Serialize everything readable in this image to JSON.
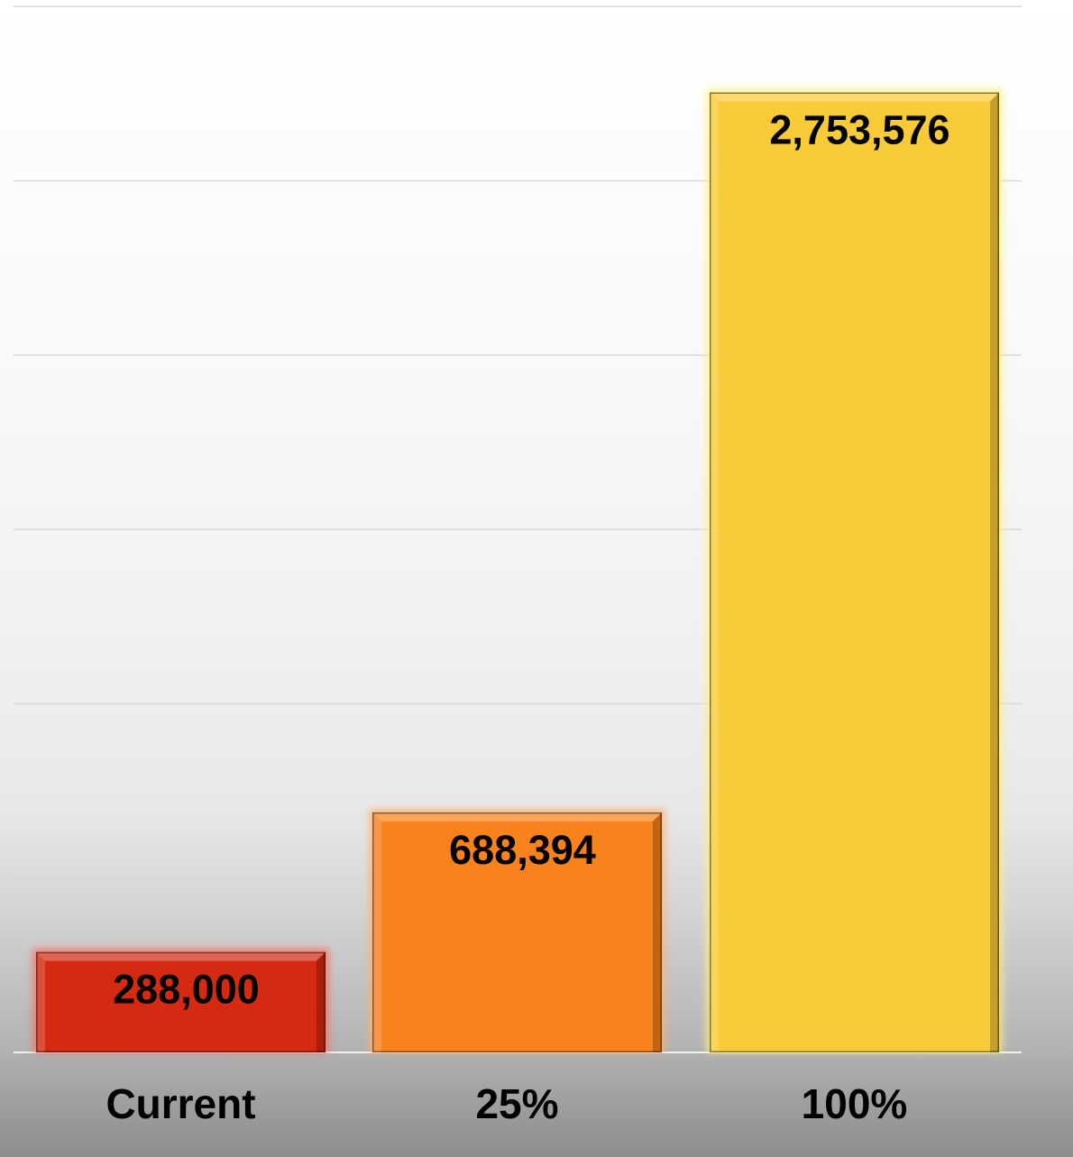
{
  "chart_data": {
    "type": "bar",
    "categories": [
      "Current",
      "25%",
      "100%"
    ],
    "values": [
      288000,
      688394,
      2753576
    ],
    "value_labels": [
      "288,000",
      "688,394",
      "2,753,576"
    ],
    "colors": [
      "#d42a12",
      "#f8821b",
      "#f9cb38"
    ],
    "glow_colors": [
      "#ff6a5a",
      "#ffb070",
      "#fff07a"
    ],
    "title": "",
    "xlabel": "",
    "ylabel": "",
    "ylim": [
      0,
      3000000
    ],
    "ytick_step": 500000,
    "grid": true,
    "legend": "none"
  }
}
